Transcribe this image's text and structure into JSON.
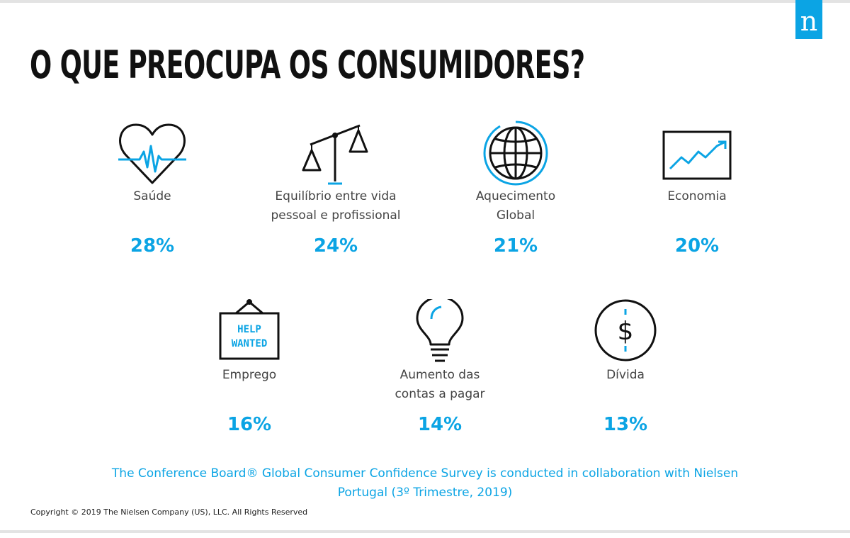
{
  "brand": {
    "logo_letter": "n",
    "accent_color": "#0ba4e4"
  },
  "title": "O QUE PREOCUPA OS CONSUMIDORES?",
  "concerns": [
    {
      "label_lines": [
        "Saúde"
      ],
      "percent": "28%",
      "icon": "heart-pulse-icon"
    },
    {
      "label_lines": [
        "Equilíbrio entre vida",
        "pessoal e profissional"
      ],
      "percent": "24%",
      "icon": "balance-scale-icon"
    },
    {
      "label_lines": [
        "Aquecimento",
        "Global"
      ],
      "percent": "21%",
      "icon": "globe-icon"
    },
    {
      "label_lines": [
        "Economia"
      ],
      "percent": "20%",
      "icon": "trend-chart-icon"
    },
    {
      "label_lines": [
        "Emprego"
      ],
      "percent": "16%",
      "icon": "help-wanted-sign-icon",
      "sign_lines": [
        "HELP",
        "WANTED"
      ]
    },
    {
      "label_lines": [
        "Aumento das",
        "contas a pagar"
      ],
      "percent": "14%",
      "icon": "lightbulb-icon"
    },
    {
      "label_lines": [
        "Dívida"
      ],
      "percent": "13%",
      "icon": "dollar-coin-icon",
      "symbol": "$"
    }
  ],
  "source_note": "The Conference Board® Global Consumer Confidence Survey is conducted in collaboration with Nielsen Portugal (3º Trimestre, 2019)",
  "copyright": "Copyright © 2019 The Nielsen Company (US), LLC. All Rights Reserved"
}
